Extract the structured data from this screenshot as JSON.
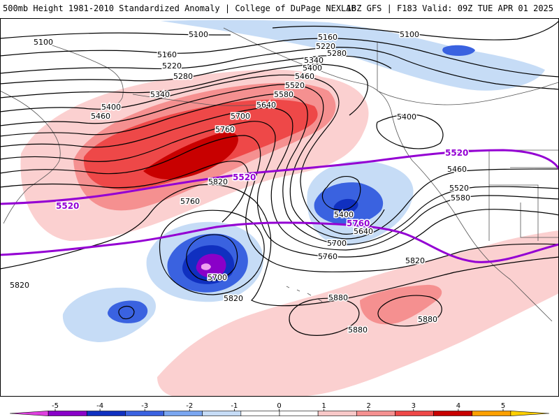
{
  "header": {
    "left_title": "500mb Height 1981-2010 Standardized Anomaly | College of DuPage NEXLAB",
    "right_title": "18Z GFS | F183 Valid: 09Z TUE APR 01 2025"
  },
  "contour_labels": {
    "c5100": "5100",
    "c5160": "5160",
    "c5220": "5220",
    "c5280": "5280",
    "c5340": "5340",
    "c5400": "5400",
    "c5460": "5460",
    "c5520": "5520",
    "c5580": "5580",
    "c5640": "5640",
    "c5700": "5700",
    "c5760": "5760",
    "c5820": "5820",
    "c5880": "5880"
  },
  "climo_labels": {
    "c5520": "5520",
    "c5760": "5760"
  },
  "colorbar": {
    "ticks": [
      "-5",
      "-4",
      "-3",
      "-2",
      "-1",
      "0",
      "1",
      "2",
      "3",
      "4",
      "5"
    ],
    "colors": [
      "#e040e0",
      "#8a00c8",
      "#1030c0",
      "#3a62e0",
      "#7aa6f0",
      "#c6dcf6",
      "#ffffff",
      "#ffffff",
      "#f8c8c8",
      "#f59090",
      "#ee4848",
      "#c80000",
      "#ffa000",
      "#ffd000"
    ]
  },
  "colors": {
    "climo_line": "#9400d3",
    "contour": "#000000",
    "coast": "#555555"
  }
}
